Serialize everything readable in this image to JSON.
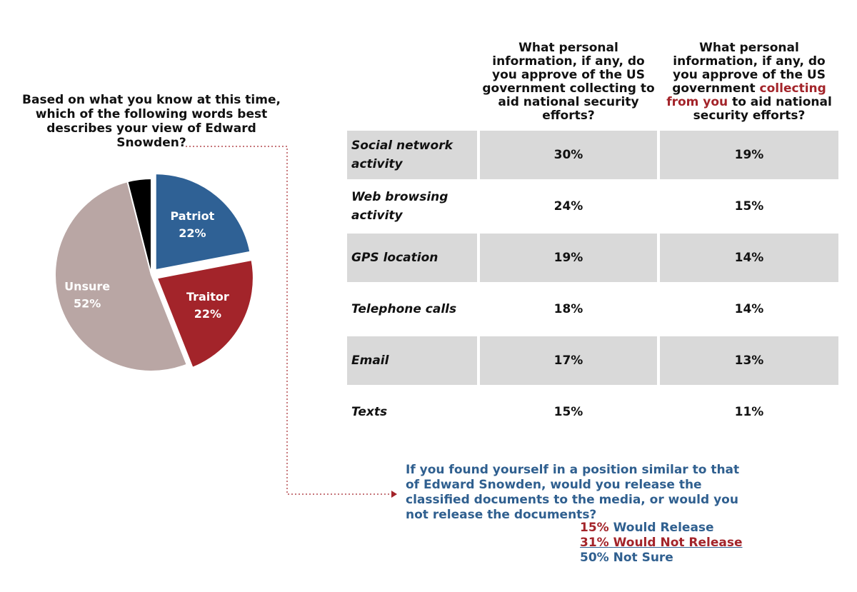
{
  "chart_data": {
    "type": "pie",
    "title": "Based on what you know at this time, which of the following words best describes your view of Edward Snowden?",
    "categories": [
      "Patriot",
      "Traitor",
      "Unsure",
      null
    ],
    "values": [
      22,
      22,
      52,
      4
    ],
    "value_labels": [
      "22%",
      "22%",
      "52%",
      null
    ],
    "colors": [
      "#2f6195",
      "#a3242a",
      "#b9a6a4",
      "#000000"
    ]
  },
  "table": {
    "headers": [
      "What personal information, if any, do you approve of the US government collecting to aid national security efforts?",
      [
        "What personal information, if any, do you approve of the US government ",
        "collecting from you",
        " to aid national security efforts?"
      ]
    ],
    "rows": [
      [
        "Social network activity",
        "30%",
        "19%"
      ],
      [
        "Web browsing activity",
        "24%",
        "15%"
      ],
      [
        "GPS location",
        "19%",
        "14%"
      ],
      [
        "Telephone calls",
        "18%",
        "14%"
      ],
      [
        "Email",
        "17%",
        "13%"
      ],
      [
        "Texts",
        "15%",
        "11%"
      ]
    ]
  },
  "question": {
    "text": "If you found yourself in a position similar to that of Edward Snowden, would you release the classified documents to the media, or would you not release the documents?",
    "answers": [
      {
        "pct": "15%",
        "label": "Would Release"
      },
      {
        "pct": "31%",
        "label": "Would Not Release"
      },
      {
        "pct": "50%",
        "label": "Not Sure"
      }
    ]
  }
}
